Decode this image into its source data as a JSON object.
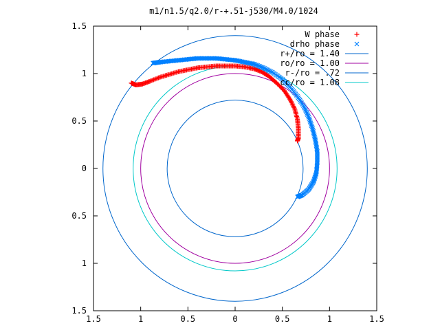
{
  "chart_data": {
    "type": "scatter",
    "title": "m1/n1.5/q2.0/r-+.51-j530/M4.0/1024",
    "xlim": [
      -1.5,
      1.5
    ],
    "ylim": [
      -1.5,
      1.5
    ],
    "xticks": [
      -1.5,
      -1,
      -0.5,
      0,
      0.5,
      1,
      1.5
    ],
    "xtick_labels": [
      "1.5",
      "1",
      "0.5",
      "0",
      "0.5",
      "1",
      "1.5"
    ],
    "yticks": [
      1.5,
      1,
      0.5,
      0,
      -0.5,
      -1,
      -1.5
    ],
    "ytick_labels": [
      "1.5",
      "1",
      "0.5",
      "0",
      "0.5",
      "1",
      "1.5"
    ],
    "grid": false,
    "legend_position": "top-right",
    "series": [
      {
        "name": "W phase",
        "marker": "+",
        "color": "#ff0000",
        "points": [
          [
            -1.1,
            0.9
          ],
          [
            -1.05,
            0.88
          ],
          [
            -0.98,
            0.89
          ],
          [
            -0.9,
            0.92
          ],
          [
            -0.8,
            0.96
          ],
          [
            -0.7,
            0.99
          ],
          [
            -0.6,
            1.02
          ],
          [
            -0.5,
            1.04
          ],
          [
            -0.4,
            1.06
          ],
          [
            -0.3,
            1.07
          ],
          [
            -0.2,
            1.08
          ],
          [
            -0.1,
            1.08
          ],
          [
            0.0,
            1.08
          ],
          [
            0.1,
            1.07
          ],
          [
            0.2,
            1.05
          ],
          [
            0.28,
            1.02
          ],
          [
            0.36,
            0.97
          ],
          [
            0.44,
            0.9
          ],
          [
            0.52,
            0.82
          ],
          [
            0.58,
            0.73
          ],
          [
            0.63,
            0.63
          ],
          [
            0.66,
            0.52
          ],
          [
            0.67,
            0.42
          ],
          [
            0.67,
            0.32
          ],
          [
            0.66,
            0.29
          ]
        ]
      },
      {
        "name": "drho phase",
        "marker": "x",
        "color": "#0080ff",
        "points": [
          [
            -0.87,
            1.11
          ],
          [
            -0.8,
            1.12
          ],
          [
            -0.7,
            1.13
          ],
          [
            -0.6,
            1.14
          ],
          [
            -0.5,
            1.15
          ],
          [
            -0.4,
            1.16
          ],
          [
            -0.3,
            1.16
          ],
          [
            -0.2,
            1.16
          ],
          [
            -0.1,
            1.15
          ],
          [
            0.0,
            1.14
          ],
          [
            0.1,
            1.12
          ],
          [
            0.2,
            1.1
          ],
          [
            0.3,
            1.06
          ],
          [
            0.4,
            1.01
          ],
          [
            0.5,
            0.94
          ],
          [
            0.58,
            0.86
          ],
          [
            0.66,
            0.76
          ],
          [
            0.73,
            0.65
          ],
          [
            0.78,
            0.54
          ],
          [
            0.82,
            0.42
          ],
          [
            0.85,
            0.3
          ],
          [
            0.87,
            0.18
          ],
          [
            0.87,
            0.06
          ],
          [
            0.86,
            -0.05
          ],
          [
            0.83,
            -0.14
          ],
          [
            0.78,
            -0.22
          ],
          [
            0.71,
            -0.28
          ],
          [
            0.66,
            -0.3
          ]
        ]
      },
      {
        "name": "r+/ro = 1.40",
        "type": "circle",
        "radius": 1.4,
        "color": "#0066cc"
      },
      {
        "name": "ro/ro = 1.00",
        "type": "circle",
        "radius": 1.0,
        "color": "#a000a0"
      },
      {
        "name": "r-/ro = .72",
        "type": "circle",
        "radius": 0.72,
        "color": "#0066cc"
      },
      {
        "name": "cc/ro = 1.08",
        "type": "circle",
        "radius": 1.08,
        "color": "#00c8c8"
      }
    ]
  }
}
